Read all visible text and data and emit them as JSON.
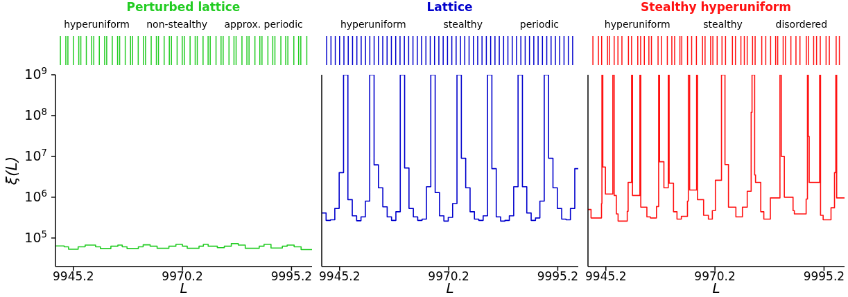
{
  "chart_data": [
    {
      "type": "step",
      "title": "Perturbed lattice",
      "xlabel": "L",
      "ylabel": "ξ(L)",
      "log": "y",
      "xlim": [
        9941.1,
        9999.9
      ],
      "xticks": [
        9945.2,
        9970.2,
        9995.2
      ],
      "ylim": [
        20000,
        1000000000
      ],
      "yticks": [
        {
          "value": 100000,
          "label": "10$^{5}$"
        },
        {
          "value": 1000000,
          "label": "10$^{6}$"
        },
        {
          "value": 10000000,
          "label": "10$^{7}$"
        },
        {
          "value": 100000000,
          "label": "10$^{8}$"
        },
        {
          "value": 1000000000,
          "label": "10$^{9}$"
        }
      ],
      "annotations": [
        "hyperuniform",
        "non-stealthy",
        "approx. periodic"
      ],
      "series": [
        {
          "color": "#22cc22",
          "x": [
            9941.1,
            9943.1,
            9944.1,
            9946.3,
            9947.9,
            9950.3,
            9951.4,
            9953.8,
            9955.4,
            9956.4,
            9957.5,
            9960.1,
            9961.2,
            9962.8,
            9964.4,
            9967.1,
            9968.7,
            9970.2,
            9971.3,
            9974.0,
            9975.0,
            9976.1,
            9978.2,
            9979.8,
            9981.4,
            9983.0,
            9984.6,
            9987.8,
            9988.9,
            9990.5,
            9993.1,
            9994.2,
            9995.8,
            9997.4,
            9999.9
          ],
          "values": [
            64000,
            61000,
            53000,
            61000,
            67000,
            61000,
            55000,
            63000,
            67000,
            61000,
            55000,
            61000,
            68000,
            63000,
            56000,
            63000,
            70000,
            63000,
            56000,
            63000,
            70000,
            63000,
            58000,
            63000,
            73000,
            67000,
            56000,
            63000,
            70000,
            57000,
            63000,
            67000,
            61000,
            52000,
            52000
          ]
        }
      ]
    },
    {
      "type": "step",
      "title": "Lattice",
      "xlabel": "L",
      "log": "y",
      "xlim": [
        9941.1,
        9999.9
      ],
      "xticks": [
        9945.2,
        9970.2,
        9995.2
      ],
      "ylim": [
        20000,
        1000000000
      ],
      "tick_labels": "x",
      "annotations": [
        "hyperuniform",
        "stealthy",
        "periodic"
      ],
      "yticks": [
        {
          "value": 100000,
          "label": null
        },
        {
          "value": 1000000,
          "label": null
        },
        {
          "value": 10000000,
          "label": null
        },
        {
          "value": 100000000,
          "label": null
        },
        {
          "value": 1000000000,
          "label": null
        }
      ],
      "series": [
        {
          "color": "#0000cc",
          "x": [
            9941.1,
            9942.1,
            9943.1,
            9944.1,
            9945.1,
            9946.1,
            9947.1,
            9948.1,
            9949.1,
            9950.1,
            9951.1,
            9952.1,
            9953.1,
            9954.1,
            9955.1,
            9956.1,
            9957.1,
            9958.1,
            9959.1,
            9960.1,
            9961.1,
            9962.1,
            9963.1,
            9964.1,
            9965.1,
            9966.1,
            9967.1,
            9968.1,
            9969.1,
            9970.1,
            9971.1,
            9972.1,
            9973.1,
            9974.1,
            9975.1,
            9976.1,
            9977.1,
            9978.1,
            9979.1,
            9980.1,
            9981.1,
            9982.1,
            9983.1,
            9984.1,
            9985.1,
            9986.1,
            9987.1,
            9988.1,
            9989.1,
            9990.1,
            9991.1,
            9992.1,
            9993.1,
            9994.1,
            9995.1,
            9996.1,
            9997.1,
            9998.1,
            9999.1,
            9999.9
          ],
          "values": [
            410000,
            270000,
            280000,
            530000,
            4000000,
            1000000000,
            870000,
            350000,
            265000,
            330000,
            800000,
            1000000000,
            6200000,
            1700000,
            580000,
            330000,
            270000,
            440000,
            1000000000,
            5200000,
            530000,
            330000,
            270000,
            290000,
            1800000,
            1000000000,
            1300000,
            350000,
            260000,
            320000,
            700000,
            1000000000,
            9000000,
            1700000,
            440000,
            290000,
            270000,
            350000,
            1000000000,
            5000000,
            330000,
            260000,
            270000,
            350000,
            1800000,
            1000000000,
            1800000,
            410000,
            270000,
            310000,
            800000,
            1000000000,
            9000000,
            1700000,
            530000,
            290000,
            280000,
            530000,
            5000000,
            5000000
          ]
        }
      ]
    },
    {
      "type": "step",
      "title": "Stealthy hyperuniform",
      "xlabel": "L",
      "log": "y",
      "xlim": [
        9941.1,
        9999.9
      ],
      "xticks": [
        9945.2,
        9970.2,
        9995.2
      ],
      "ylim": [
        20000,
        1000000000
      ],
      "tick_labels": "x",
      "annotations": [
        "hyperuniform",
        "stealthy",
        "disordered"
      ],
      "yticks": [
        {
          "value": 100000,
          "label": null
        },
        {
          "value": 1000000,
          "label": null
        },
        {
          "value": 10000000,
          "label": null
        },
        {
          "value": 100000000,
          "label": null
        },
        {
          "value": 1000000000,
          "label": null
        }
      ],
      "series": [
        {
          "color": "#ff1111",
          "x": [
            9941.1,
            9941.8,
            9944.2,
            9944.3,
            9944.5,
            9945.1,
            9946.8,
            9947.1,
            9947.6,
            9948.0,
            9950.1,
            9950.3,
            9951.1,
            9951.3,
            9953.0,
            9953.2,
            9954.6,
            9955.4,
            9956.8,
            9957.3,
            9957.5,
            9958.5,
            9959.5,
            9959.7,
            9960.7,
            9961.5,
            9962.5,
            9963.9,
            9964.1,
            9964.4,
            9966.0,
            9966.2,
            9967.6,
            9968.7,
            9969.6,
            9970.3,
            9971.7,
            9972.5,
            9973.3,
            9975.0,
            9976.5,
            9977.6,
            9978.5,
            9978.7,
            9979.3,
            9979.5,
            9980.7,
            9981.4,
            9982.9,
            9985.1,
            9985.4,
            9986.1,
            9988.1,
            9988.4,
            9991.1,
            9991.4,
            9991.6,
            9991.8,
            9994.2,
            9994.4,
            9995.0,
            9996.8,
            9997.6,
            9997.9,
            9998.1,
            9999.9
          ],
          "values": [
            500000,
            310000,
            700000,
            1000000000,
            5500000,
            1200000,
            1000000000,
            1100000,
            390000,
            260000,
            450000,
            2300000,
            1000000000,
            1100000,
            1000000000,
            570000,
            330000,
            310000,
            590000,
            1000000000,
            7400000,
            1700000,
            1000000000,
            2200000,
            440000,
            290000,
            340000,
            800000,
            1000000000,
            1500000,
            1000000000,
            870000,
            360000,
            290000,
            470000,
            2600000,
            1000000000,
            6300000,
            570000,
            330000,
            570000,
            1400000,
            120000000,
            1000000000,
            3500000,
            2300000,
            440000,
            290000,
            960000,
            1000000000,
            10000000,
            1000000,
            470000,
            390000,
            900000,
            1000000000,
            31000000,
            2300000,
            1000000000,
            360000,
            280000,
            550000,
            4000000,
            1000000000,
            960000,
            960000
          ]
        }
      ]
    }
  ]
}
